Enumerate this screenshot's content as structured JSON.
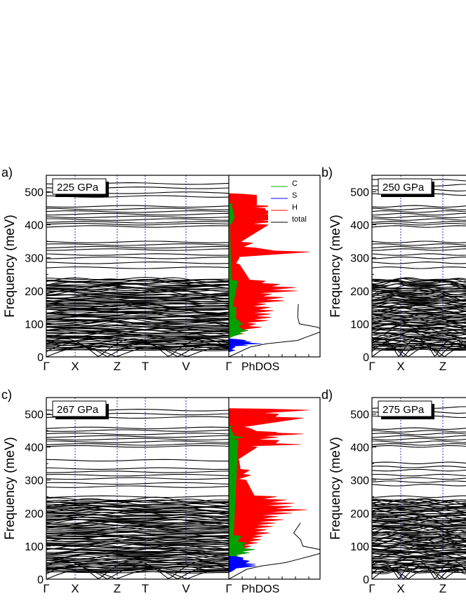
{
  "chart_data": [
    {
      "type": "line",
      "panel_label": "a)",
      "pressure_label": "225 GPa",
      "ylabel": "Frequency (meV)",
      "ylim": [
        0,
        550
      ],
      "yticks": [
        0,
        100,
        200,
        300,
        400,
        500
      ],
      "high_paths": [
        "Γ",
        "X",
        "Z",
        "T",
        "V",
        "Γ"
      ],
      "phdos_label": "PhDOS",
      "legend": [
        {
          "name": "C",
          "color": "#00b000"
        },
        {
          "name": "S",
          "color": "#0000ff"
        },
        {
          "name": "H",
          "color": "#ff0000"
        },
        {
          "name": "total",
          "color": "#000000"
        }
      ],
      "flat_bands_meV": [
        525,
        512,
        497,
        486,
        456,
        448,
        440,
        432,
        424,
        416,
        408,
        402,
        395,
        348,
        340,
        332,
        325,
        310,
        300,
        285,
        270
      ],
      "dense_band_top_meV": 235,
      "dos": {
        "H": [
          [
            490,
            0.3
          ],
          [
            456,
            0.6
          ],
          [
            450,
            0.45
          ],
          [
            440,
            0.8
          ],
          [
            430,
            0.7
          ],
          [
            420,
            0.9
          ],
          [
            410,
            0.6
          ],
          [
            400,
            0.45
          ],
          [
            345,
            0.25
          ],
          [
            330,
            0.3
          ],
          [
            318,
            1.0
          ],
          [
            300,
            0.2
          ],
          [
            280,
            0.15
          ],
          [
            230,
            0.45
          ],
          [
            220,
            0.7
          ],
          [
            210,
            0.9
          ],
          [
            200,
            0.85
          ],
          [
            190,
            0.6
          ],
          [
            180,
            0.7
          ],
          [
            170,
            0.75
          ],
          [
            160,
            0.55
          ],
          [
            150,
            0.5
          ],
          [
            140,
            0.6
          ],
          [
            130,
            0.5
          ],
          [
            120,
            0.55
          ],
          [
            110,
            0.5
          ],
          [
            100,
            0.35
          ],
          [
            90,
            0.4
          ],
          [
            80,
            0.3
          ],
          [
            70,
            0.2
          ]
        ],
        "C": [
          [
            460,
            0.08
          ],
          [
            420,
            0.12
          ],
          [
            400,
            0.06
          ],
          [
            230,
            0.05
          ],
          [
            150,
            0.08
          ],
          [
            120,
            0.15
          ],
          [
            100,
            0.25
          ],
          [
            90,
            0.2
          ],
          [
            80,
            0.3
          ],
          [
            70,
            0.22
          ],
          [
            60,
            0.1
          ]
        ],
        "S": [
          [
            50,
            0.2
          ],
          [
            45,
            0.3
          ],
          [
            40,
            0.35
          ],
          [
            35,
            0.25
          ],
          [
            30,
            0.12
          ],
          [
            20,
            0.05
          ]
        ],
        "total_extra": [
          [
            160,
            0.9
          ],
          [
            120,
            0.85
          ],
          [
            100,
            0.95
          ],
          [
            90,
            1.1
          ],
          [
            80,
            1.2
          ],
          [
            70,
            1.15
          ],
          [
            60,
            1.05
          ],
          [
            50,
            0.9
          ],
          [
            40,
            0.5
          ],
          [
            30,
            0.25
          ]
        ]
      }
    },
    {
      "type": "line",
      "panel_label": "b)",
      "pressure_label": "250 GPa",
      "ylabel": "Frequency (meV)",
      "ylim": [
        0,
        550
      ],
      "yticks": [
        0,
        100,
        200,
        300,
        400,
        500
      ],
      "high_paths": [
        "Γ",
        "X",
        "Z"
      ],
      "flat_bands_meV": [
        535,
        520,
        505,
        492,
        456,
        448,
        440,
        432,
        424,
        416,
        408,
        402,
        395,
        348,
        340,
        332,
        325,
        310,
        300,
        285,
        270
      ],
      "dense_band_top_meV": 235
    },
    {
      "type": "line",
      "panel_label": "c)",
      "pressure_label": "267 GPa",
      "ylabel": "Frequency (meV)",
      "ylim": [
        0,
        550
      ],
      "yticks": [
        0,
        100,
        200,
        300,
        400,
        500
      ],
      "high_paths": [
        "Γ",
        "X",
        "Z",
        "T",
        "V",
        "Γ"
      ],
      "phdos_label": "PhDOS",
      "flat_bands_meV": [
        512,
        500,
        490,
        458,
        450,
        440,
        432,
        424,
        416,
        408,
        402,
        360,
        335,
        325,
        315,
        305,
        290,
        280,
        250
      ],
      "dense_band_top_meV": 240,
      "dos": {
        "H": [
          [
            512,
            1.0
          ],
          [
            500,
            0.7
          ],
          [
            488,
            1.0
          ],
          [
            458,
            0.3
          ],
          [
            445,
            0.6
          ],
          [
            440,
            1.0
          ],
          [
            430,
            0.7
          ],
          [
            420,
            0.6
          ],
          [
            408,
            1.0
          ],
          [
            400,
            0.4
          ],
          [
            360,
            0.2
          ],
          [
            330,
            0.25
          ],
          [
            315,
            0.3
          ],
          [
            300,
            0.2
          ],
          [
            250,
            0.55
          ],
          [
            240,
            0.7
          ],
          [
            230,
            0.85
          ],
          [
            220,
            0.75
          ],
          [
            210,
            0.95
          ],
          [
            200,
            0.8
          ],
          [
            190,
            0.65
          ],
          [
            180,
            0.7
          ],
          [
            170,
            0.6
          ],
          [
            160,
            0.55
          ],
          [
            150,
            0.5
          ],
          [
            140,
            0.55
          ],
          [
            130,
            0.5
          ],
          [
            120,
            0.45
          ],
          [
            110,
            0.4
          ],
          [
            100,
            0.3
          ],
          [
            90,
            0.3
          ],
          [
            80,
            0.2
          ]
        ],
        "C": [
          [
            460,
            0.08
          ],
          [
            430,
            0.12
          ],
          [
            420,
            0.08
          ],
          [
            130,
            0.1
          ],
          [
            110,
            0.18
          ],
          [
            100,
            0.28
          ],
          [
            90,
            0.3
          ],
          [
            80,
            0.25
          ],
          [
            70,
            0.15
          ]
        ],
        "S": [
          [
            65,
            0.18
          ],
          [
            55,
            0.3
          ],
          [
            45,
            0.35
          ],
          [
            40,
            0.28
          ],
          [
            30,
            0.15
          ],
          [
            20,
            0.05
          ]
        ],
        "total_extra": [
          [
            170,
            0.9
          ],
          [
            140,
            0.85
          ],
          [
            120,
            0.95
          ],
          [
            100,
            1.0
          ],
          [
            90,
            1.15
          ],
          [
            80,
            1.2
          ],
          [
            70,
            1.1
          ],
          [
            60,
            0.95
          ],
          [
            50,
            0.7
          ],
          [
            40,
            0.4
          ],
          [
            30,
            0.2
          ]
        ]
      }
    },
    {
      "type": "line",
      "panel_label": "d)",
      "pressure_label": "275 GPa",
      "ylabel": "Frequency (meV)",
      "ylim": [
        0,
        550
      ],
      "yticks": [
        0,
        100,
        200,
        300,
        400,
        500
      ],
      "high_paths": [
        "Γ",
        "X",
        "Z"
      ],
      "flat_bands_meV": [
        520,
        505,
        492,
        456,
        448,
        440,
        432,
        424,
        416,
        408,
        402,
        352,
        340,
        330,
        315,
        305,
        295,
        285,
        250
      ],
      "dense_band_top_meV": 240
    }
  ]
}
